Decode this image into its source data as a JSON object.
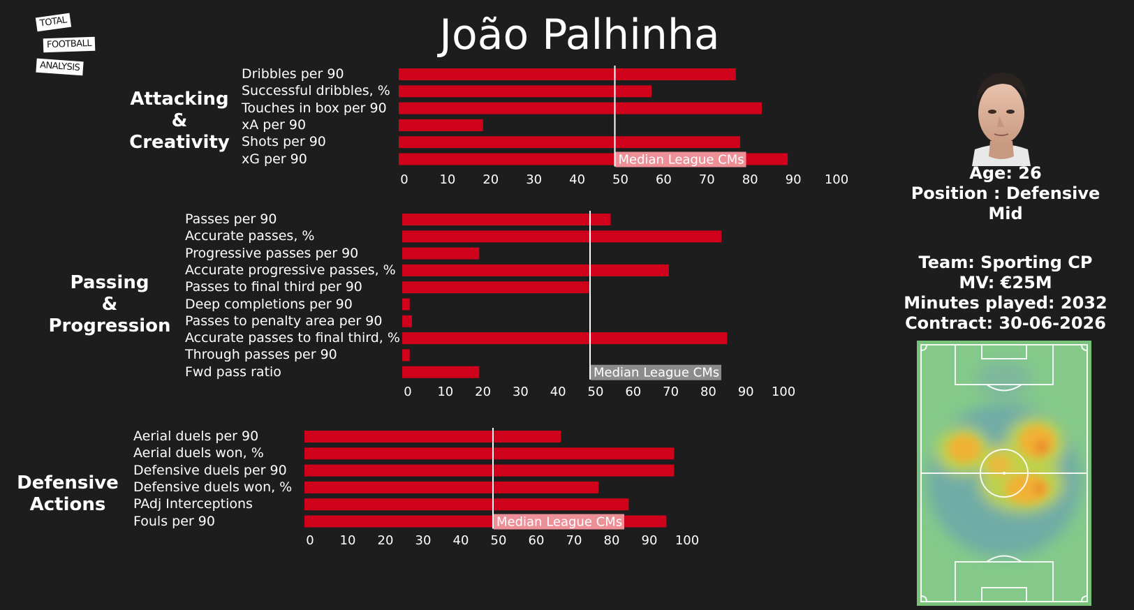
{
  "logo": {
    "line1": "TOTAL",
    "line2": "FOOTBALL",
    "line3": "ANALYSIS"
  },
  "player": {
    "name": "João Palhinha"
  },
  "info": {
    "age": "Age: 26",
    "position_line1": "Position : Defensive",
    "position_line2": "Mid",
    "team": "Team: Sporting CP",
    "mv": "MV: €25M",
    "minutes": "Minutes played: 2032",
    "contract": "Contract: 30-06-2026"
  },
  "colors": {
    "bar": "#d0021b",
    "background": "#1d1d1d",
    "median_label_bg": "#ec8f97",
    "median_label_bg_alt": "#8c8c8c"
  },
  "chart_data": [
    {
      "type": "bar",
      "orientation": "horizontal",
      "section_label": [
        "Attacking",
        "&",
        "Creativity"
      ],
      "categories": [
        "Dribbles per 90",
        "Successful dribbles, %",
        "Touches in box per 90",
        "xA per 90",
        "Shots per 90",
        "xG per 90"
      ],
      "values": [
        78,
        58.5,
        84,
        19.5,
        79,
        90
      ],
      "xlim": [
        0,
        100
      ],
      "xticks": [
        0,
        10,
        20,
        30,
        40,
        50,
        60,
        70,
        80,
        90,
        100
      ],
      "median": 50,
      "median_label": "Median League CMs"
    },
    {
      "type": "bar",
      "orientation": "horizontal",
      "section_label": [
        "Passing",
        "&",
        "Progression"
      ],
      "categories": [
        "Passes per 90",
        "Accurate passes, %",
        "Progressive passes per 90",
        "Accurate progressive passes, %",
        "Passes to final third per 90",
        "Deep completions per 90",
        "Passes to penalty area per 90",
        "Accurate passes to final third, %",
        "Through passes per 90",
        "Fwd pass ratio"
      ],
      "values": [
        55.5,
        85,
        20.5,
        71,
        50,
        2,
        2.6,
        86.5,
        2,
        20.5
      ],
      "xlim": [
        0,
        100
      ],
      "xticks": [
        0,
        10,
        20,
        30,
        40,
        50,
        60,
        70,
        80,
        90,
        100
      ],
      "median": 50,
      "median_label": "Median League CMs"
    },
    {
      "type": "bar",
      "orientation": "horizontal",
      "section_label": [
        "Defensive",
        "Actions"
      ],
      "categories": [
        "Aerial duels per 90",
        "Aerial duels won, %",
        "Defensive duels per 90",
        "Defensive duels won, %",
        "PAdj Interceptions",
        "Fouls per 90"
      ],
      "values": [
        68,
        98,
        98,
        78,
        86,
        96
      ],
      "xlim": [
        0,
        100
      ],
      "xticks": [
        0,
        10,
        20,
        30,
        40,
        50,
        60,
        70,
        80,
        90,
        100
      ],
      "median": 50,
      "median_label": "Median League CMs"
    }
  ]
}
